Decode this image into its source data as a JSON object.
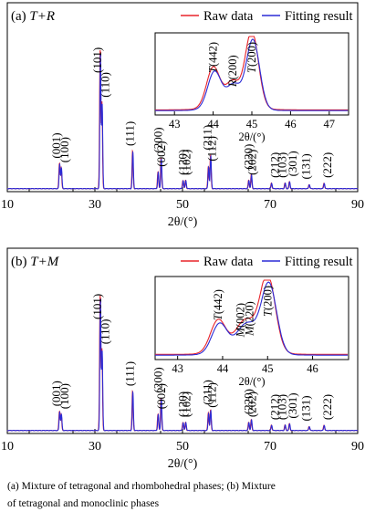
{
  "legend": {
    "raw_label": "Raw data",
    "fit_label": "Fitting result",
    "raw_color": "#e8232a",
    "fit_color": "#2b2bd6"
  },
  "caption": {
    "line1": "(a) Mixture of tetragonal and rhombohedral phases; (b) Mixture",
    "line2": "of tetragonal and monoclinic phases"
  },
  "chart_data": [
    {
      "type": "line",
      "panel_label": "(a)",
      "panel_phase": "T+R",
      "xlabel": "2θ/(°)",
      "xlim": [
        10,
        90
      ],
      "xticks": [
        "10",
        "30",
        "50",
        "70",
        "90"
      ],
      "ylim": [
        0,
        100
      ],
      "grid": false,
      "legend_position": "top-right",
      "series": [
        {
          "name": "Raw data",
          "color": "#e8232a"
        },
        {
          "name": "Fitting result",
          "color": "#2b2bd6"
        }
      ],
      "peaks": [
        {
          "label": "(001)",
          "x": 21.9,
          "y": 18
        },
        {
          "label": "(100)",
          "x": 22.3,
          "y": 15
        },
        {
          "label": "(101)",
          "x": 31.2,
          "y": 100
        },
        {
          "label": "(110)",
          "x": 31.6,
          "y": 62
        },
        {
          "label": "(111)",
          "x": 38.6,
          "y": 27
        },
        {
          "label": "(002)",
          "x": 44.4,
          "y": 12
        },
        {
          "label": "(200)",
          "x": 45.1,
          "y": 22
        },
        {
          "label": "(102)",
          "x": 50.1,
          "y": 6
        },
        {
          "label": "(120)",
          "x": 50.7,
          "y": 6
        },
        {
          "label": "(112)",
          "x": 55.9,
          "y": 16
        },
        {
          "label": "(211)",
          "x": 56.4,
          "y": 24
        },
        {
          "label": "(202)",
          "x": 65.1,
          "y": 6
        },
        {
          "label": "(220)",
          "x": 65.7,
          "y": 10
        },
        {
          "label": "(212)",
          "x": 70.3,
          "y": 4
        },
        {
          "label": "(103)",
          "x": 73.4,
          "y": 4
        },
        {
          "label": "(301)",
          "x": 74.4,
          "y": 5
        },
        {
          "label": "(131)",
          "x": 78.9,
          "y": 3
        },
        {
          "label": "(222)",
          "x": 82.3,
          "y": 4
        }
      ],
      "inset": {
        "xlim": [
          42.5,
          47.5
        ],
        "xticks": [
          "43",
          "44",
          "45",
          "46",
          "47"
        ],
        "xlabel": "2θ/(°)",
        "annotations": [
          "T(442)",
          "R(200)",
          "T(200)"
        ],
        "peaks": [
          {
            "x": 44.0,
            "y": 52
          },
          {
            "x": 44.5,
            "y": 28
          },
          {
            "x": 45.0,
            "y": 100
          }
        ]
      }
    },
    {
      "type": "line",
      "panel_label": "(b)",
      "panel_phase": "T+M",
      "xlabel": "2θ/(°)",
      "xlim": [
        10,
        90
      ],
      "xticks": [
        "10",
        "30",
        "50",
        "70",
        "90"
      ],
      "ylim": [
        0,
        100
      ],
      "grid": false,
      "legend_position": "top-right",
      "series": [
        {
          "name": "Raw data",
          "color": "#e8232a"
        },
        {
          "name": "Fitting result",
          "color": "#2b2bd6"
        }
      ],
      "peaks": [
        {
          "label": "(001)",
          "x": 21.9,
          "y": 14
        },
        {
          "label": "(100)",
          "x": 22.3,
          "y": 12
        },
        {
          "label": "(101)",
          "x": 31.2,
          "y": 100
        },
        {
          "label": "(110)",
          "x": 31.6,
          "y": 60
        },
        {
          "label": "(111)",
          "x": 38.6,
          "y": 29
        },
        {
          "label": "(002)",
          "x": 44.4,
          "y": 12
        },
        {
          "label": "(200)",
          "x": 45.1,
          "y": 24
        },
        {
          "label": "(102)",
          "x": 50.1,
          "y": 6
        },
        {
          "label": "(120)",
          "x": 50.7,
          "y": 6
        },
        {
          "label": "(112)",
          "x": 55.9,
          "y": 13
        },
        {
          "label": "(211)",
          "x": 56.4,
          "y": 15
        },
        {
          "label": "(202)",
          "x": 65.1,
          "y": 6
        },
        {
          "label": "(220)",
          "x": 65.7,
          "y": 8
        },
        {
          "label": "(212)",
          "x": 70.3,
          "y": 4
        },
        {
          "label": "(103)",
          "x": 73.4,
          "y": 4
        },
        {
          "label": "(301)",
          "x": 74.4,
          "y": 5
        },
        {
          "label": "(131)",
          "x": 78.9,
          "y": 3
        },
        {
          "label": "(222)",
          "x": 82.3,
          "y": 4
        }
      ],
      "inset": {
        "xlim": [
          42.5,
          46.8
        ],
        "xticks": [
          "43",
          "44",
          "45",
          "46"
        ],
        "xlabel": "2θ/(°)",
        "annotations": [
          "T(442)",
          "M(002)",
          "M(220)",
          "T(200)"
        ],
        "peaks": [
          {
            "x": 43.9,
            "y": 42
          },
          {
            "x": 44.4,
            "y": 20
          },
          {
            "x": 44.6,
            "y": 22
          },
          {
            "x": 45.0,
            "y": 100
          }
        ]
      }
    }
  ]
}
